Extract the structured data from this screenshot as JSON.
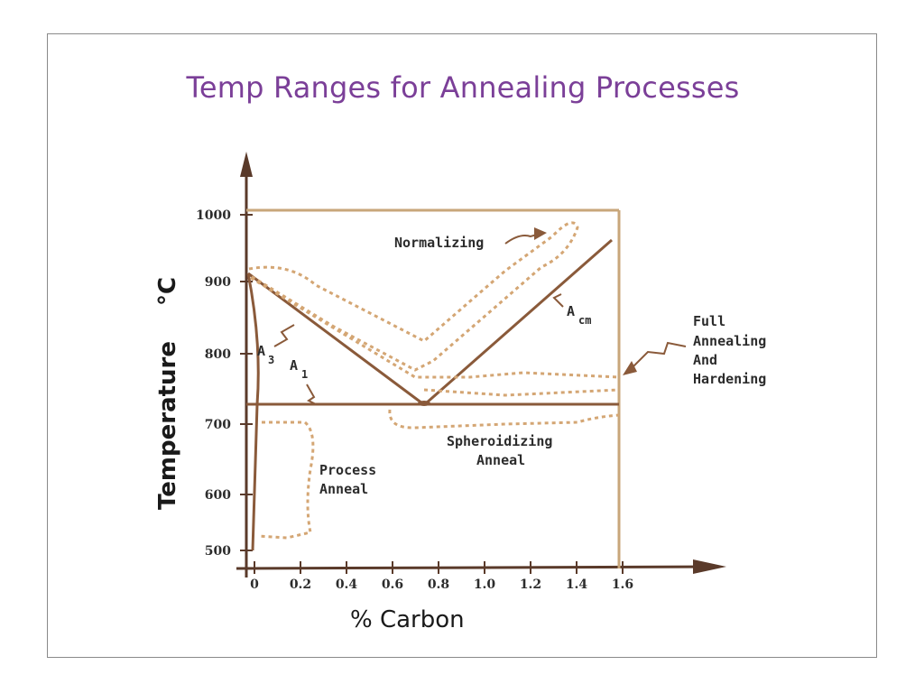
{
  "slide": {
    "title": "Temp Ranges for Annealing Processes"
  },
  "chart_data": {
    "type": "phase-diagram",
    "title": "Temp Ranges for Annealing Processes",
    "xlabel": "% Carbon",
    "ylabel": "Temperature",
    "ylabel_unit": "°C",
    "x_ticks": [
      "0",
      "0.2",
      "0.4",
      "0.6",
      "0.8",
      "1.0",
      "1.2",
      "1.4",
      "1.6"
    ],
    "y_ticks": [
      "500",
      "600",
      "700",
      "800",
      "900",
      "1000"
    ],
    "xlim": [
      0,
      1.6
    ],
    "ylim": [
      500,
      1000
    ],
    "lines": [
      {
        "name": "A3",
        "label_main": "A",
        "label_sub": "3",
        "points": [
          [
            0,
            910
          ],
          [
            0.75,
            727
          ]
        ]
      },
      {
        "name": "A1",
        "label_main": "A",
        "label_sub": "1",
        "points": [
          [
            0,
            727
          ],
          [
            1.6,
            727
          ]
        ]
      },
      {
        "name": "Acm",
        "label_main": "A",
        "label_sub": "cm",
        "points": [
          [
            0.77,
            727
          ],
          [
            1.55,
            960
          ]
        ]
      }
    ],
    "regions": [
      {
        "name": "Normalizing",
        "label": "Normalizing"
      },
      {
        "name": "Full Annealing And Hardening",
        "label_lines": [
          "Full",
          "Annealing",
          "And",
          "Hardening"
        ]
      },
      {
        "name": "Spheroidizing Anneal",
        "label_lines": [
          "Spheroidizing",
          "Anneal"
        ]
      },
      {
        "name": "Process Anneal",
        "label_lines": [
          "Process",
          "Anneal"
        ]
      }
    ]
  },
  "colors": {
    "title": "#7b3f98",
    "frame": "#c8a67a",
    "phase_line": "#8a5a3a",
    "dashed": "#d4a674"
  }
}
